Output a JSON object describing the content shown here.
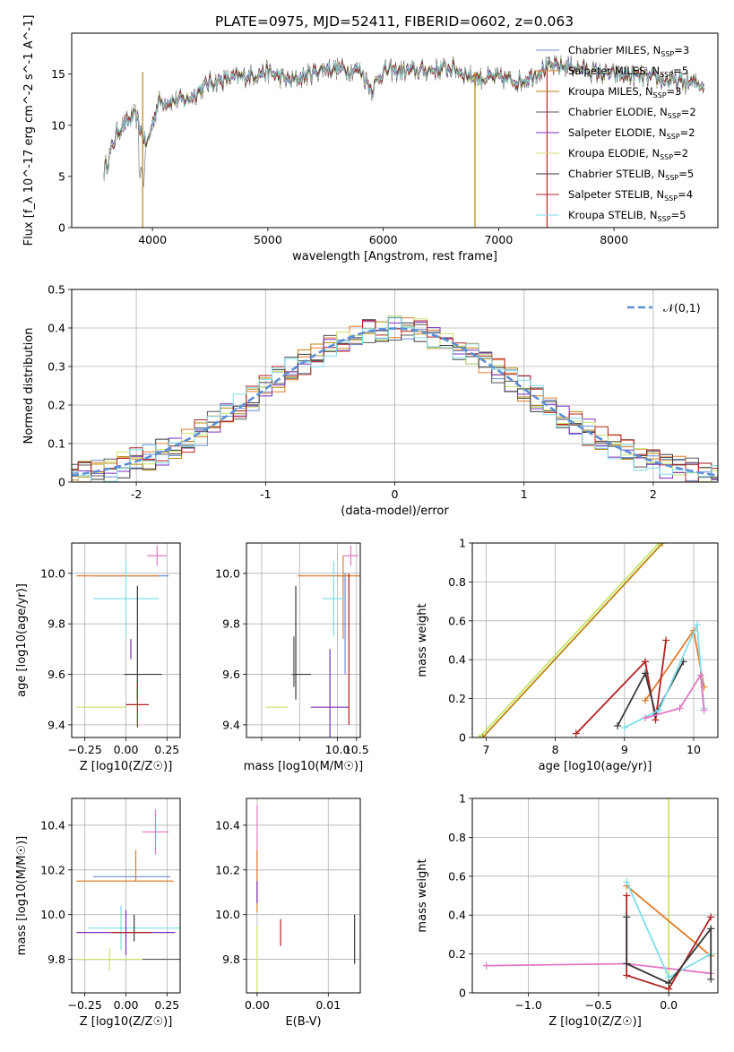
{
  "figure_title": "PLATE=0975, MJD=52411, FIBERID=0602, z=0.063",
  "colors": {
    "c0": "#6b8fd6",
    "c1": "#e07c2c",
    "c2": "#b8860b",
    "c3": "#555555",
    "c4": "#7b2fbe",
    "c5": "#c8e46c",
    "c6": "#3a3a3a",
    "c7": "#b22222",
    "c8": "#7fdde6",
    "c9": "#e377c2",
    "grid": "#b0b0b0"
  },
  "chart_data": [
    {
      "id": "spectrum",
      "type": "line",
      "title": "PLATE=0975, MJD=52411, FIBERID=0602, z=0.063",
      "xlabel": "wavelength [Angstrom, rest frame]",
      "ylabel": "Flux [f_λ 10^-17 erg cm^-2 s^-1 A^-1]",
      "xlim": [
        3300,
        8900
      ],
      "ylim": [
        0,
        19
      ],
      "xticks": [
        4000,
        5000,
        6000,
        7000,
        8000
      ],
      "yticks": [
        0,
        5,
        10,
        15
      ],
      "grid": false,
      "legend_position": "top-right",
      "series": [
        {
          "name": "Chabrier MILES, N_SSP=3",
          "color_key": "c0"
        },
        {
          "name": "Salpeter MILES, N_SSP=5",
          "color_key": "c1"
        },
        {
          "name": "Kroupa MILES, N_SSP=3",
          "color_key": "c2"
        },
        {
          "name": "Chabrier ELODIE, N_SSP=2",
          "color_key": "c3"
        },
        {
          "name": "Salpeter ELODIE, N_SSP=2",
          "color_key": "c4"
        },
        {
          "name": "Kroupa ELODIE, N_SSP=2",
          "color_key": "c5"
        },
        {
          "name": "Chabrier STELIB, N_SSP=5",
          "color_key": "c6"
        },
        {
          "name": "Salpeter STELIB, N_SSP=4",
          "color_key": "c7"
        },
        {
          "name": "Kroupa STELIB, N_SSP=5",
          "color_key": "c8"
        }
      ],
      "continuum": [
        [
          3580,
          5.5
        ],
        [
          3700,
          9.5
        ],
        [
          3850,
          11
        ],
        [
          3950,
          8
        ],
        [
          4050,
          12.3
        ],
        [
          4300,
          12.5
        ],
        [
          4500,
          14.2
        ],
        [
          4800,
          14.8
        ],
        [
          5000,
          15.2
        ],
        [
          5200,
          14.3
        ],
        [
          5500,
          15.6
        ],
        [
          5800,
          15.4
        ],
        [
          5900,
          13.5
        ],
        [
          6000,
          15.3
        ],
        [
          6300,
          15.3
        ],
        [
          6600,
          15.6
        ],
        [
          6800,
          14.6
        ],
        [
          7000,
          14.6
        ],
        [
          7200,
          14.3
        ],
        [
          7400,
          15.6
        ],
        [
          7600,
          15.8
        ],
        [
          7900,
          15.0
        ],
        [
          8200,
          14.8
        ],
        [
          8500,
          14.3
        ],
        [
          8780,
          14.0
        ]
      ]
    },
    {
      "id": "residuals",
      "type": "line",
      "xlabel": "(data-model)/error",
      "ylabel": "Normed distribution",
      "xlim": [
        -2.5,
        2.5
      ],
      "ylim": [
        0,
        0.5
      ],
      "xticks": [
        -2,
        -1,
        0,
        1,
        2
      ],
      "yticks": [
        0.0,
        0.1,
        0.2,
        0.3,
        0.4,
        0.5
      ],
      "grid": true,
      "legend_position": "top-right",
      "legend_label": "𝒩(0,1)",
      "curve": {
        "type": "normal",
        "mean": 0,
        "sd": 1,
        "color": "#5b8fd6"
      },
      "hist_bin_width": 0.1
    },
    {
      "id": "age-vs-Z",
      "type": "scatter",
      "xlabel": "Z [log10(Z/Z☉)]",
      "ylabel": "age [log10(age/yr)]",
      "xlim": [
        -0.33,
        0.33
      ],
      "ylim": [
        9.35,
        10.12
      ],
      "xticks": [
        -0.25,
        0.0,
        0.25
      ],
      "xticklabels": [
        "−0.25",
        "0.00",
        "0.25"
      ],
      "yticks": [
        9.4,
        9.6,
        9.8,
        10.0
      ],
      "yticklabels": [
        "9.4",
        "9.6",
        "9.8",
        "10.0"
      ],
      "grid": true,
      "errorbars": [
        {
          "color_key": "c0",
          "x": 0.06,
          "y": 9.99,
          "x_err": [
            0.26,
            0.2
          ],
          "y_err": [
            0.0,
            0.0
          ]
        },
        {
          "color_key": "c1",
          "x": -0.05,
          "y": 9.99,
          "x_err": [
            0.25,
            0.25
          ],
          "y_err": [
            0.0,
            0.0
          ]
        },
        {
          "color_key": "c8",
          "x": 0.0,
          "y": 9.9,
          "x_err": [
            0.2,
            0.2
          ],
          "y_err": [
            0.15,
            0.15
          ]
        },
        {
          "color_key": "c9",
          "x": 0.19,
          "y": 10.07,
          "x_err": [
            0.06,
            0.06
          ],
          "y_err": [
            0.04,
            0.04
          ]
        },
        {
          "color_key": "c6",
          "x": 0.07,
          "y": 9.6,
          "x_err": [
            0.08,
            0.15
          ],
          "y_err": [
            0.1,
            0.35
          ]
        },
        {
          "color_key": "c4",
          "x": 0.03,
          "y": 9.7,
          "x_err": [
            0.0,
            0.0
          ],
          "y_err": [
            0.04,
            0.04
          ]
        },
        {
          "color_key": "c7",
          "x": 0.07,
          "y": 9.48,
          "x_err": [
            0.07,
            0.07
          ],
          "y_err": [
            0.09,
            0.09
          ]
        },
        {
          "color_key": "c5",
          "x": -0.15,
          "y": 9.47,
          "x_err": [
            0.15,
            0.15
          ],
          "y_err": [
            0.0,
            0.0
          ]
        }
      ]
    },
    {
      "id": "age-vs-mass",
      "type": "scatter",
      "xlabel": "mass [log10(M/M☉)]",
      "ylabel": "",
      "xlim": [
        7.6,
        10.6
      ],
      "ylim": [
        9.35,
        10.12
      ],
      "xticks": [
        8.0,
        9.0,
        10.0,
        10.5
      ],
      "xticklabels": [
        "",
        "",
        "10.0",
        "10.5"
      ],
      "yticks": [
        9.4,
        9.6,
        9.8,
        10.0
      ],
      "yticklabels": [
        "9.4",
        "9.6",
        "9.8",
        "10.0"
      ],
      "grid": true,
      "errorbars": [
        {
          "color_key": "c0",
          "x": 10.2,
          "y": 9.8,
          "x_err": [
            0,
            0
          ],
          "y_err": [
            0.2,
            0.2
          ]
        },
        {
          "color_key": "c1",
          "x": 10.15,
          "y": 9.99,
          "x_err": [
            1.2,
            0.5
          ],
          "y_err": [
            0.25,
            0.08
          ]
        },
        {
          "color_key": "c8",
          "x": 9.9,
          "y": 9.9,
          "x_err": [
            0.3,
            0.3
          ],
          "y_err": [
            0.15,
            0.15
          ]
        },
        {
          "color_key": "c9",
          "x": 10.35,
          "y": 10.07,
          "x_err": [
            0.2,
            0.2
          ],
          "y_err": [
            0.04,
            0.04
          ]
        },
        {
          "color_key": "c6",
          "x": 8.9,
          "y": 9.6,
          "x_err": [
            0.1,
            0.4
          ],
          "y_err": [
            0.1,
            0.35
          ]
        },
        {
          "color_key": "c3",
          "x": 8.85,
          "y": 9.65,
          "x_err": [
            0,
            0
          ],
          "y_err": [
            0.1,
            0.1
          ]
        },
        {
          "color_key": "c4",
          "x": 9.8,
          "y": 9.47,
          "x_err": [
            0.5,
            0.5
          ],
          "y_err": [
            0.23,
            0.23
          ]
        },
        {
          "color_key": "c7",
          "x": 10.3,
          "y": 9.7,
          "x_err": [
            0,
            0
          ],
          "y_err": [
            0.3,
            0.3
          ]
        },
        {
          "color_key": "c5",
          "x": 8.4,
          "y": 9.47,
          "x_err": [
            0.3,
            0.3
          ],
          "y_err": [
            0,
            0
          ]
        }
      ]
    },
    {
      "id": "weight-vs-age",
      "type": "line",
      "xlabel": "age [log10(age/yr)]",
      "ylabel": "mass weight",
      "xlim": [
        6.8,
        10.35
      ],
      "ylim": [
        0,
        1.0
      ],
      "xticks": [
        7,
        8,
        9,
        10
      ],
      "yticks": [
        0.0,
        0.2,
        0.4,
        0.6,
        0.8,
        1.0
      ],
      "grid": true,
      "series": [
        {
          "color_key": "c5",
          "points": [
            [
              6.9,
              0.0
            ],
            [
              9.5,
              1.0
            ]
          ]
        },
        {
          "color_key": "c2",
          "points": [
            [
              6.95,
              0.0
            ],
            [
              9.55,
              1.0
            ]
          ]
        },
        {
          "color_key": "c1",
          "points": [
            [
              9.3,
              0.19
            ],
            [
              10.0,
              0.55
            ],
            [
              10.15,
              0.26
            ]
          ]
        },
        {
          "color_key": "c7",
          "points": [
            [
              8.3,
              0.02
            ],
            [
              9.3,
              0.39
            ],
            [
              9.45,
              0.09
            ],
            [
              9.6,
              0.5
            ]
          ]
        },
        {
          "color_key": "c6",
          "points": [
            [
              8.9,
              0.06
            ],
            [
              9.3,
              0.33
            ],
            [
              9.45,
              0.12
            ],
            [
              9.85,
              0.39
            ]
          ]
        },
        {
          "color_key": "c8",
          "points": [
            [
              9.0,
              0.05
            ],
            [
              9.5,
              0.14
            ],
            [
              10.05,
              0.58
            ],
            [
              10.15,
              0.15
            ]
          ]
        },
        {
          "color_key": "c9",
          "points": [
            [
              9.3,
              0.1
            ],
            [
              9.8,
              0.15
            ],
            [
              10.1,
              0.32
            ],
            [
              10.15,
              0.14
            ]
          ]
        }
      ]
    },
    {
      "id": "mass-vs-Z",
      "type": "scatter",
      "xlabel": "Z [log10(Z/Z☉)]",
      "ylabel": "mass [log10(M/M☉)]",
      "xlim": [
        -0.33,
        0.33
      ],
      "ylim": [
        9.65,
        10.52
      ],
      "xticks": [
        -0.25,
        0.0,
        0.25
      ],
      "xticklabels": [
        "−0.25",
        "0.00",
        "0.25"
      ],
      "yticks": [
        9.8,
        10.0,
        10.2,
        10.4
      ],
      "yticklabels": [
        "9.8",
        "10.0",
        "10.2",
        "10.4"
      ],
      "grid": true,
      "errorbars": [
        {
          "color_key": "c0",
          "x": 0.05,
          "y": 10.17,
          "x_err": [
            0.25,
            0.22
          ],
          "y_err": [
            0,
            0
          ]
        },
        {
          "color_key": "c1",
          "x": 0.06,
          "y": 10.15,
          "x_err": [
            0.36,
            0.23
          ],
          "y_err": [
            0.0,
            0.14
          ]
        },
        {
          "color_key": "c8",
          "x": -0.03,
          "y": 9.94,
          "x_err": [
            0.2,
            0.4
          ],
          "y_err": [
            0.1,
            0.1
          ]
        },
        {
          "color_key": "c9",
          "x": 0.18,
          "y": 10.37,
          "x_err": [
            0.08,
            0.08
          ],
          "y_err": [
            0.1,
            0.1
          ]
        },
        {
          "color_key": "c6",
          "x": 0.05,
          "y": 9.94,
          "x_err": [
            0,
            0
          ],
          "y_err": [
            0.06,
            0.06
          ]
        },
        {
          "color_key": "c4",
          "x": 0.0,
          "y": 9.92,
          "x_err": [
            0.3,
            0.3
          ],
          "y_err": [
            0.1,
            0.1
          ]
        },
        {
          "color_key": "c7",
          "x": 0.06,
          "y": 9.92,
          "x_err": [
            0.15,
            0.1
          ],
          "y_err": [
            0,
            0
          ]
        },
        {
          "color_key": "c3",
          "x": 0.0,
          "y": 9.8,
          "x_err": [
            0.3,
            0.4
          ],
          "y_err": [
            0,
            0
          ]
        },
        {
          "color_key": "c5",
          "x": -0.1,
          "y": 9.8,
          "x_err": [
            0.2,
            0.2
          ],
          "y_err": [
            0.05,
            0.05
          ]
        }
      ]
    },
    {
      "id": "mass-vs-EBV",
      "type": "scatter",
      "xlabel": "E(B-V)",
      "ylabel": "",
      "xlim": [
        -0.0015,
        0.0145
      ],
      "ylim": [
        9.65,
        10.52
      ],
      "xticks": [
        0.0,
        0.01
      ],
      "xticklabels": [
        "0.00",
        "0.01"
      ],
      "yticks": [
        9.8,
        10.0,
        10.2,
        10.4
      ],
      "yticklabels": [
        "9.8",
        "10.0",
        "10.2",
        "10.4"
      ],
      "grid": true,
      "errorbars": [
        {
          "color_key": "c9",
          "x": 0.0,
          "y": 10.32,
          "x_err": [
            0,
            0
          ],
          "y_err": [
            0.17,
            0.17
          ]
        },
        {
          "color_key": "c1",
          "x": 0.0,
          "y": 10.15,
          "x_err": [
            0,
            0
          ],
          "y_err": [
            0.14,
            0.14
          ]
        },
        {
          "color_key": "c4",
          "x": 0.0,
          "y": 10.1,
          "x_err": [
            0,
            0
          ],
          "y_err": [
            0.05,
            0.05
          ]
        },
        {
          "color_key": "c5",
          "x": 0.0,
          "y": 9.8,
          "x_err": [
            0,
            0
          ],
          "y_err": [
            0.15,
            0.15
          ]
        },
        {
          "color_key": "c7",
          "x": 0.0033,
          "y": 9.92,
          "x_err": [
            0,
            0
          ],
          "y_err": [
            0.06,
            0.06
          ]
        },
        {
          "color_key": "c6",
          "x": 0.0137,
          "y": 9.89,
          "x_err": [
            0,
            0
          ],
          "y_err": [
            0.11,
            0.11
          ]
        }
      ]
    },
    {
      "id": "weight-vs-Z",
      "type": "line",
      "xlabel": "Z [log10(Z/Z☉)]",
      "ylabel": "mass weight",
      "xlim": [
        -1.4,
        0.35
      ],
      "ylim": [
        0,
        1.0
      ],
      "xticks": [
        -1.0,
        -0.5,
        0.0
      ],
      "xticklabels": [
        "−1.0",
        "−0.5",
        "0.0"
      ],
      "yticks": [
        0.0,
        0.2,
        0.4,
        0.6,
        0.8,
        1.0
      ],
      "grid": true,
      "series": [
        {
          "color_key": "c5",
          "points": [
            [
              0.0,
              1.0
            ],
            [
              0.0,
              0.0
            ]
          ]
        },
        {
          "color_key": "c9",
          "points": [
            [
              -1.3,
              0.14
            ],
            [
              -0.3,
              0.15
            ],
            [
              0.3,
              0.1
            ]
          ]
        },
        {
          "color_key": "c1",
          "points": [
            [
              -0.3,
              0.55
            ],
            [
              0.3,
              0.19
            ]
          ]
        },
        {
          "color_key": "c8",
          "points": [
            [
              -0.3,
              0.57
            ],
            [
              0.0,
              0.08
            ],
            [
              0.3,
              0.2
            ]
          ]
        },
        {
          "color_key": "c7",
          "points": [
            [
              -0.3,
              0.5
            ],
            [
              -0.3,
              0.09
            ],
            [
              0.0,
              0.02
            ],
            [
              0.3,
              0.39
            ]
          ]
        },
        {
          "color_key": "c6",
          "points": [
            [
              -0.3,
              0.39
            ],
            [
              -0.3,
              0.15
            ],
            [
              0.0,
              0.05
            ],
            [
              0.3,
              0.33
            ],
            [
              0.3,
              0.07
            ]
          ]
        }
      ]
    }
  ]
}
